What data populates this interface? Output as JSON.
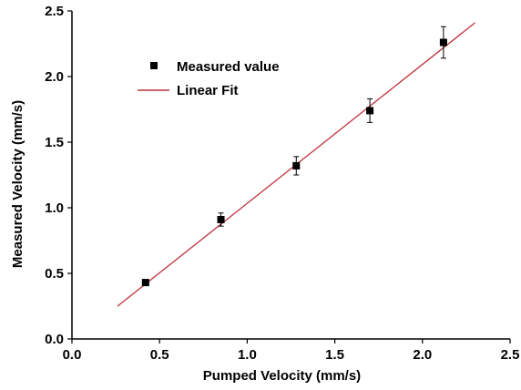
{
  "chart_data": {
    "type": "scatter",
    "title": "",
    "xlabel": "Pumped Velocity (mm/s)",
    "ylabel": "Measured Velocity (mm/s)",
    "xlim": [
      0.0,
      2.5
    ],
    "ylim": [
      0.0,
      2.5
    ],
    "xticks": [
      "0.0",
      "0.5",
      "1.0",
      "1.5",
      "2.0",
      "2.5"
    ],
    "yticks": [
      "0.0",
      "0.5",
      "1.0",
      "1.5",
      "2.0",
      "2.5"
    ],
    "grid": false,
    "legend_position": "top-left",
    "series": [
      {
        "name": "Measured value",
        "kind": "scatter",
        "marker": "square",
        "color": "#000000",
        "points": [
          {
            "x": 0.42,
            "y": 0.43,
            "err": 0.02
          },
          {
            "x": 0.85,
            "y": 0.91,
            "err": 0.05
          },
          {
            "x": 1.28,
            "y": 1.32,
            "err": 0.07
          },
          {
            "x": 1.7,
            "y": 1.74,
            "err": 0.09
          },
          {
            "x": 2.12,
            "y": 2.26,
            "err": 0.12
          }
        ]
      },
      {
        "name": "Linear Fit",
        "kind": "line",
        "color": "#c0303a",
        "x": [
          0.26,
          2.3
        ],
        "y": [
          0.25,
          2.41
        ]
      }
    ]
  }
}
